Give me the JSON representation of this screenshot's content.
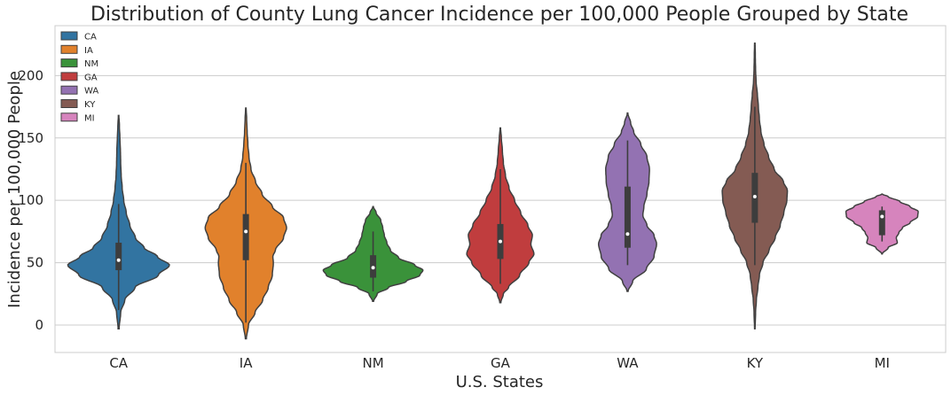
{
  "chart_data": {
    "type": "violin",
    "title": "Distribution of County Lung Cancer Incidence per 100,000 People Grouped by State",
    "xlabel": "U.S. States",
    "ylabel": "Incidence per 100,000 People",
    "categories": [
      "CA",
      "IA",
      "NM",
      "GA",
      "WA",
      "KY",
      "MI"
    ],
    "ylim": [
      -22,
      240
    ],
    "yticks": [
      0,
      50,
      100,
      150,
      200
    ],
    "grid": true,
    "legend_placement": "top-left",
    "series": [
      {
        "name": "CA",
        "color": "#3274a1",
        "min": -3,
        "max": 168,
        "q1": 44,
        "median": 52,
        "q3": 66,
        "whisker_low": 12,
        "whisker_high": 97,
        "profile": [
          [
            -3,
            0.01
          ],
          [
            10,
            0.04
          ],
          [
            20,
            0.12
          ],
          [
            30,
            0.32
          ],
          [
            40,
            0.78
          ],
          [
            48,
            1.0
          ],
          [
            55,
            0.76
          ],
          [
            62,
            0.5
          ],
          [
            70,
            0.33
          ],
          [
            80,
            0.22
          ],
          [
            90,
            0.15
          ],
          [
            100,
            0.1
          ],
          [
            110,
            0.07
          ],
          [
            120,
            0.05
          ],
          [
            130,
            0.04
          ],
          [
            140,
            0.035
          ],
          [
            150,
            0.025
          ],
          [
            160,
            0.015
          ],
          [
            168,
            0.005
          ]
        ]
      },
      {
        "name": "IA",
        "color": "#e1812c",
        "min": -11,
        "max": 174,
        "q1": 52,
        "median": 75,
        "q3": 89,
        "whisker_low": 2,
        "whisker_high": 130,
        "profile": [
          [
            -11,
            0.01
          ],
          [
            0,
            0.05
          ],
          [
            10,
            0.18
          ],
          [
            20,
            0.33
          ],
          [
            30,
            0.44
          ],
          [
            40,
            0.52
          ],
          [
            50,
            0.54
          ],
          [
            55,
            0.53
          ],
          [
            60,
            0.58
          ],
          [
            70,
            0.74
          ],
          [
            78,
            0.8
          ],
          [
            86,
            0.74
          ],
          [
            95,
            0.52
          ],
          [
            105,
            0.32
          ],
          [
            115,
            0.19
          ],
          [
            125,
            0.1
          ],
          [
            135,
            0.06
          ],
          [
            145,
            0.04
          ],
          [
            155,
            0.025
          ],
          [
            165,
            0.015
          ],
          [
            174,
            0.005
          ]
        ]
      },
      {
        "name": "NM",
        "color": "#3a923a",
        "min": 19,
        "max": 95,
        "q1": 38,
        "median": 46,
        "q3": 56,
        "whisker_low": 27,
        "whisker_high": 75,
        "profile": [
          [
            19,
            0.01
          ],
          [
            25,
            0.08
          ],
          [
            30,
            0.3
          ],
          [
            35,
            0.65
          ],
          [
            40,
            0.92
          ],
          [
            44,
            0.98
          ],
          [
            48,
            0.82
          ],
          [
            54,
            0.5
          ],
          [
            60,
            0.34
          ],
          [
            66,
            0.27
          ],
          [
            72,
            0.22
          ],
          [
            78,
            0.19
          ],
          [
            84,
            0.15
          ],
          [
            90,
            0.06
          ],
          [
            95,
            0.005
          ]
        ]
      },
      {
        "name": "GA",
        "color": "#c03d3e",
        "min": 18,
        "max": 158,
        "q1": 53,
        "median": 67,
        "q3": 81,
        "whisker_low": 33,
        "whisker_high": 125,
        "profile": [
          [
            18,
            0.01
          ],
          [
            25,
            0.06
          ],
          [
            30,
            0.16
          ],
          [
            40,
            0.38
          ],
          [
            50,
            0.56
          ],
          [
            57,
            0.66
          ],
          [
            65,
            0.6
          ],
          [
            72,
            0.63
          ],
          [
            80,
            0.54
          ],
          [
            90,
            0.4
          ],
          [
            100,
            0.28
          ],
          [
            110,
            0.17
          ],
          [
            120,
            0.1
          ],
          [
            130,
            0.06
          ],
          [
            140,
            0.04
          ],
          [
            150,
            0.02
          ],
          [
            158,
            0.005
          ]
        ]
      },
      {
        "name": "WA",
        "color": "#9372b2",
        "min": 27,
        "max": 170,
        "q1": 62,
        "median": 73,
        "q3": 111,
        "whisker_low": 48,
        "whisker_high": 148,
        "profile": [
          [
            27,
            0.01
          ],
          [
            35,
            0.1
          ],
          [
            45,
            0.37
          ],
          [
            55,
            0.52
          ],
          [
            65,
            0.57
          ],
          [
            72,
            0.52
          ],
          [
            80,
            0.38
          ],
          [
            88,
            0.3
          ],
          [
            95,
            0.32
          ],
          [
            105,
            0.38
          ],
          [
            115,
            0.42
          ],
          [
            125,
            0.43
          ],
          [
            135,
            0.38
          ],
          [
            145,
            0.26
          ],
          [
            155,
            0.12
          ],
          [
            162,
            0.06
          ],
          [
            170,
            0.005
          ]
        ]
      },
      {
        "name": "KY",
        "color": "#845b53",
        "min": -3,
        "max": 226,
        "q1": 82,
        "median": 103,
        "q3": 122,
        "whisker_low": 48,
        "whisker_high": 175,
        "profile": [
          [
            -3,
            0.005
          ],
          [
            10,
            0.015
          ],
          [
            20,
            0.03
          ],
          [
            30,
            0.06
          ],
          [
            40,
            0.09
          ],
          [
            50,
            0.16
          ],
          [
            60,
            0.28
          ],
          [
            70,
            0.4
          ],
          [
            80,
            0.5
          ],
          [
            90,
            0.57
          ],
          [
            100,
            0.63
          ],
          [
            108,
            0.64
          ],
          [
            115,
            0.56
          ],
          [
            125,
            0.38
          ],
          [
            135,
            0.27
          ],
          [
            145,
            0.18
          ],
          [
            155,
            0.12
          ],
          [
            165,
            0.09
          ],
          [
            175,
            0.07
          ],
          [
            185,
            0.05
          ],
          [
            195,
            0.025
          ],
          [
            205,
            0.015
          ],
          [
            215,
            0.01
          ],
          [
            226,
            0.005
          ]
        ]
      },
      {
        "name": "MI",
        "color": "#d684bd",
        "min": 57,
        "max": 105,
        "q1": 72,
        "median": 87,
        "q3": 92,
        "whisker_low": 67,
        "whisker_high": 95,
        "profile": [
          [
            57,
            0.005
          ],
          [
            62,
            0.12
          ],
          [
            66,
            0.3
          ],
          [
            70,
            0.28
          ],
          [
            74,
            0.33
          ],
          [
            78,
            0.4
          ],
          [
            82,
            0.55
          ],
          [
            87,
            0.7
          ],
          [
            91,
            0.71
          ],
          [
            95,
            0.55
          ],
          [
            99,
            0.35
          ],
          [
            103,
            0.12
          ],
          [
            105,
            0.005
          ]
        ]
      }
    ]
  }
}
